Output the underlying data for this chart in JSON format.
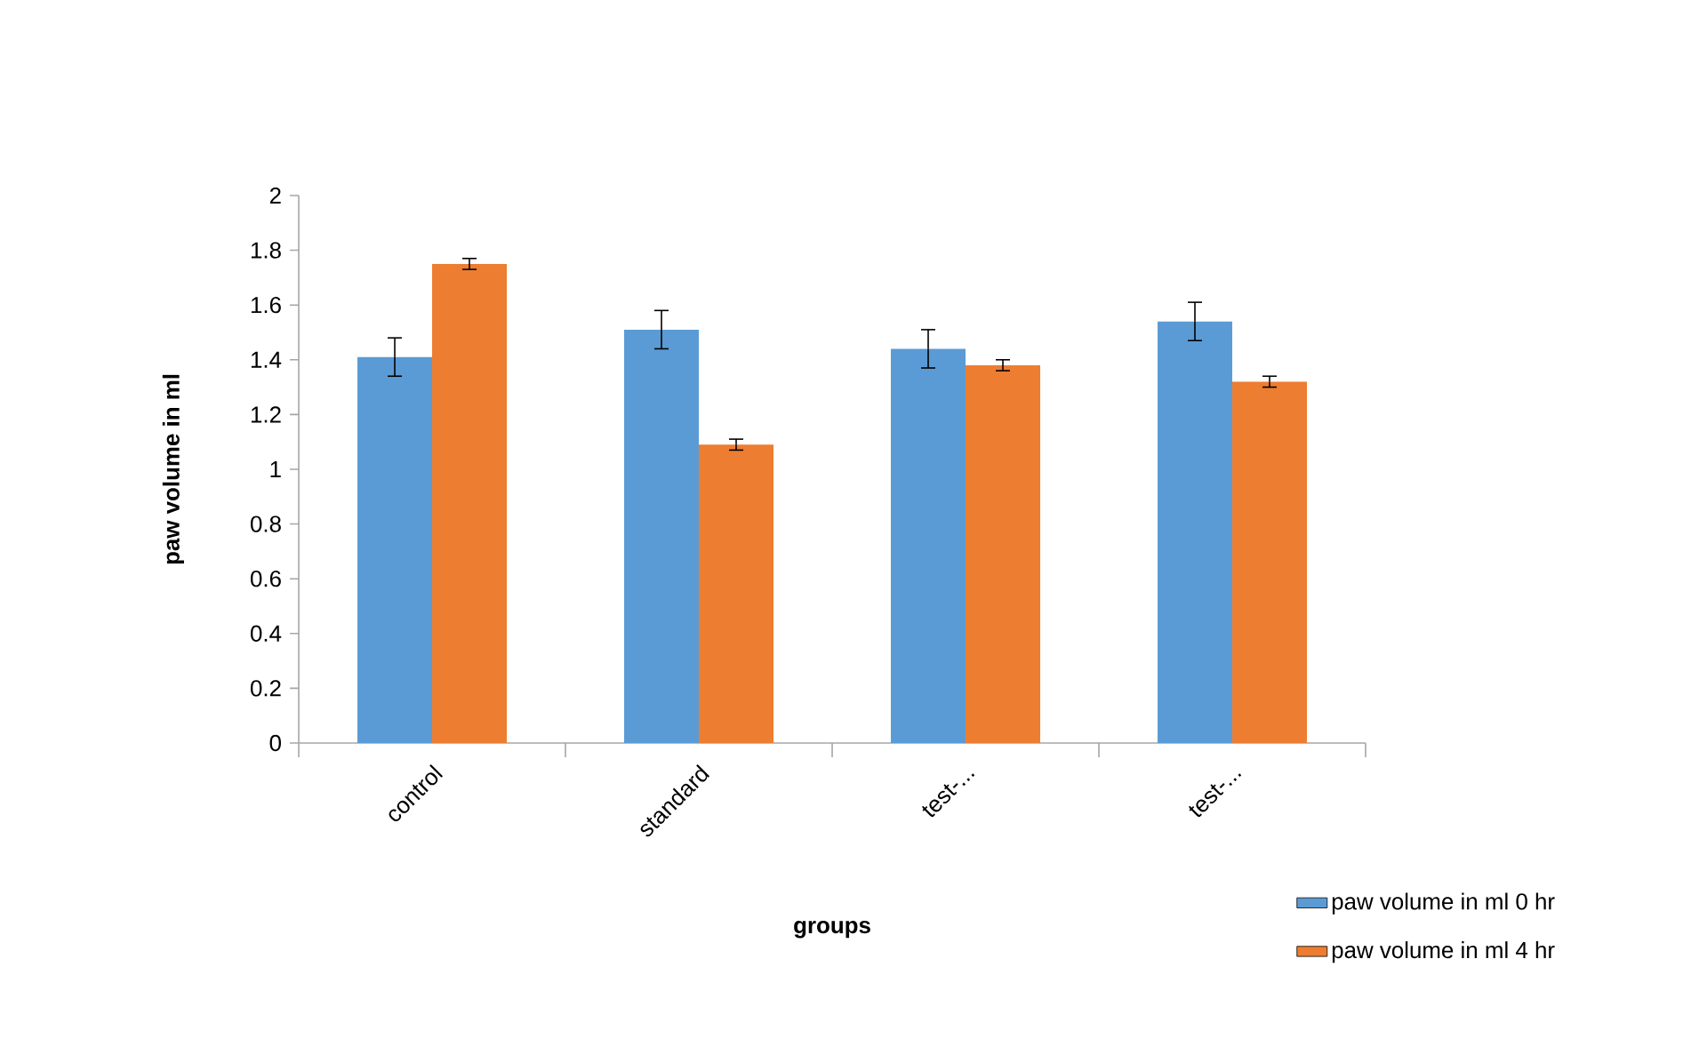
{
  "chart_data": {
    "type": "bar",
    "xlabel": "groups",
    "ylabel": "paw volume in ml",
    "categories": [
      "control",
      "standard",
      "test-...",
      "test-..."
    ],
    "series": [
      {
        "name": "paw volume in ml 0 hr",
        "color": "#5b9bd5",
        "values": [
          1.41,
          1.51,
          1.44,
          1.54
        ],
        "errors": [
          0.07,
          0.07,
          0.07,
          0.07
        ]
      },
      {
        "name": "paw volume in ml 4 hr",
        "color": "#ed7d31",
        "values": [
          1.75,
          1.09,
          1.38,
          1.32
        ],
        "errors": [
          0.02,
          0.02,
          0.02,
          0.02
        ]
      }
    ],
    "ylim": [
      0,
      2
    ],
    "yticks": [
      0,
      0.2,
      0.4,
      0.6,
      0.8,
      1,
      1.2,
      1.4,
      1.6,
      1.8,
      2
    ],
    "grid": false,
    "legend": "bottom right"
  }
}
